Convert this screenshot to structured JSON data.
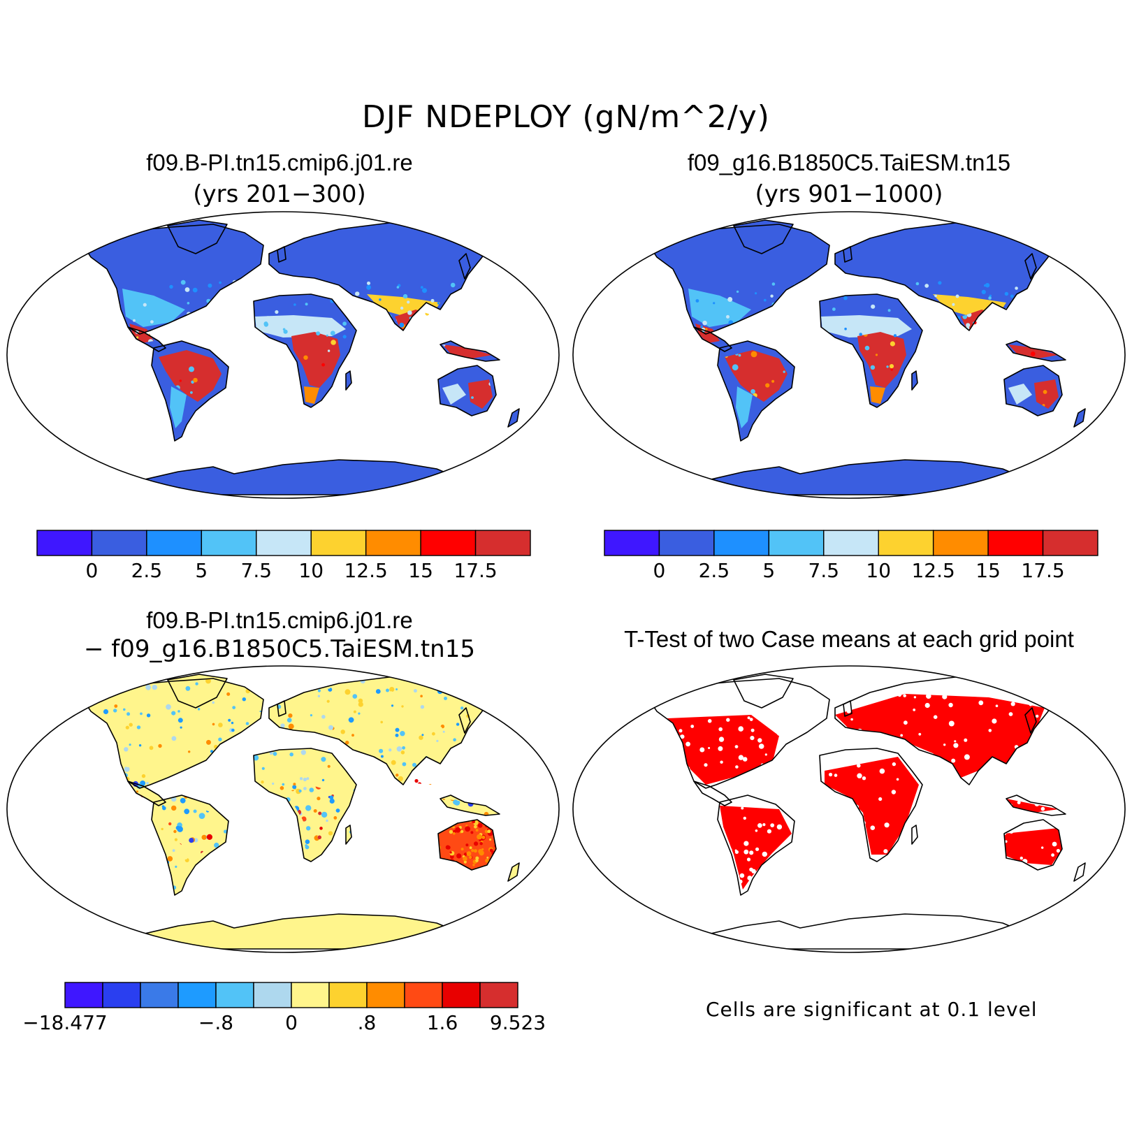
{
  "title": "DJF NDEPLOY (gN/m^2/y)",
  "panels": [
    {
      "id": "case1",
      "title": "f09.B-PI.tn15.cmip6.j01.re",
      "subtitle": "(yrs 201−300)",
      "style": "case"
    },
    {
      "id": "case2",
      "title": "f09_g16.B1850C5.TaiESM.tn15",
      "subtitle": "(yrs 901−1000)",
      "style": "case"
    },
    {
      "id": "diff",
      "title": "f09.B-PI.tn15.cmip6.j01.re",
      "subtitle": "− f09_g16.B1850C5.TaiESM.tn15",
      "style": "diff"
    },
    {
      "id": "ttest",
      "title": "T-Test of two Case means at each grid point",
      "subtitle": "",
      "style": "ttest",
      "note": "Cells are significant at 0.1 level"
    }
  ],
  "colorbar_case": {
    "colors": [
      "#3f17ff",
      "#3a5ee0",
      "#1e90ff",
      "#52c3f7",
      "#c6e6f7",
      "#fdd22f",
      "#ff8c00",
      "#ff0000",
      "#d62e2e"
    ],
    "labels": [
      "0",
      "2.5",
      "5",
      "7.5",
      "10",
      "12.5",
      "15",
      "17.5"
    ]
  },
  "colorbar_diff": {
    "colors": [
      "#3f17ff",
      "#2a3ff0",
      "#3a7ae8",
      "#1e9bff",
      "#52c3f7",
      "#aed8ee",
      "#fff58c",
      "#fdd22f",
      "#ff8c00",
      "#ff4a14",
      "#e80000",
      "#d62e2e"
    ],
    "labels": [
      {
        "text": "−18.477",
        "edge": 0
      },
      {
        "text": "−.8",
        "edge": 4
      },
      {
        "text": "0",
        "edge": 6
      },
      {
        "text": ".8",
        "edge": 8
      },
      {
        "text": "1.6",
        "edge": 10
      },
      {
        "text": "9.523",
        "edge": 12
      }
    ]
  },
  "colors": {
    "ocean": "#ffffff",
    "case_land": "#3a5ee0",
    "tropics_hot": "#d62e2e",
    "diff_land": "#fff58c",
    "ttest_sig": "#ff0000"
  }
}
